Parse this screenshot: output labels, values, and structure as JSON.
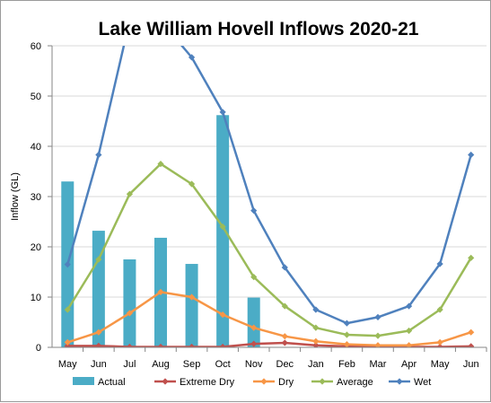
{
  "chart_data": {
    "type": "bar",
    "title": "Lake William Hovell Inflows 2020-21",
    "xlabel": "",
    "ylabel": "Inflow (GL)",
    "ylim": [
      0,
      60
    ],
    "yticks": [
      0,
      10,
      20,
      30,
      40,
      50,
      60
    ],
    "grid": true,
    "legend_position": "bottom",
    "categories": [
      "May",
      "Jun",
      "Jul",
      "Aug",
      "Sep",
      "Oct",
      "Nov",
      "Dec",
      "Jan",
      "Feb",
      "Mar",
      "Apr",
      "May",
      "Jun"
    ],
    "series": [
      {
        "name": "Actual",
        "type": "bar",
        "color": "#4bacc6",
        "values": [
          33,
          23.2,
          17.5,
          21.8,
          16.6,
          46.2,
          9.9,
          null,
          null,
          null,
          null,
          null,
          null,
          null
        ]
      },
      {
        "name": "Extreme Dry",
        "type": "line",
        "color": "#c0504d",
        "values": [
          0.3,
          0.3,
          0.1,
          0.1,
          0.1,
          0.1,
          0.7,
          0.9,
          0.4,
          0.2,
          0.1,
          0.1,
          0.1,
          0.2
        ]
      },
      {
        "name": "Dry",
        "type": "line",
        "color": "#f79646",
        "values": [
          1,
          3,
          6.8,
          11,
          10,
          6.5,
          3.9,
          2.2,
          1.2,
          0.6,
          0.4,
          0.4,
          1,
          3
        ]
      },
      {
        "name": "Average",
        "type": "line",
        "color": "#9bbb59",
        "values": [
          7.5,
          17.5,
          30.5,
          36.5,
          32.5,
          24,
          14,
          8.2,
          3.9,
          2.5,
          2.3,
          3.3,
          7.5,
          17.8
        ]
      },
      {
        "name": "Wet",
        "type": "line",
        "color": "#4f81bd",
        "values": [
          16.5,
          38.3,
          65,
          65,
          57.7,
          46.8,
          27.2,
          15.9,
          7.5,
          4.8,
          6,
          8.2,
          16.6,
          38.3
        ]
      }
    ]
  }
}
